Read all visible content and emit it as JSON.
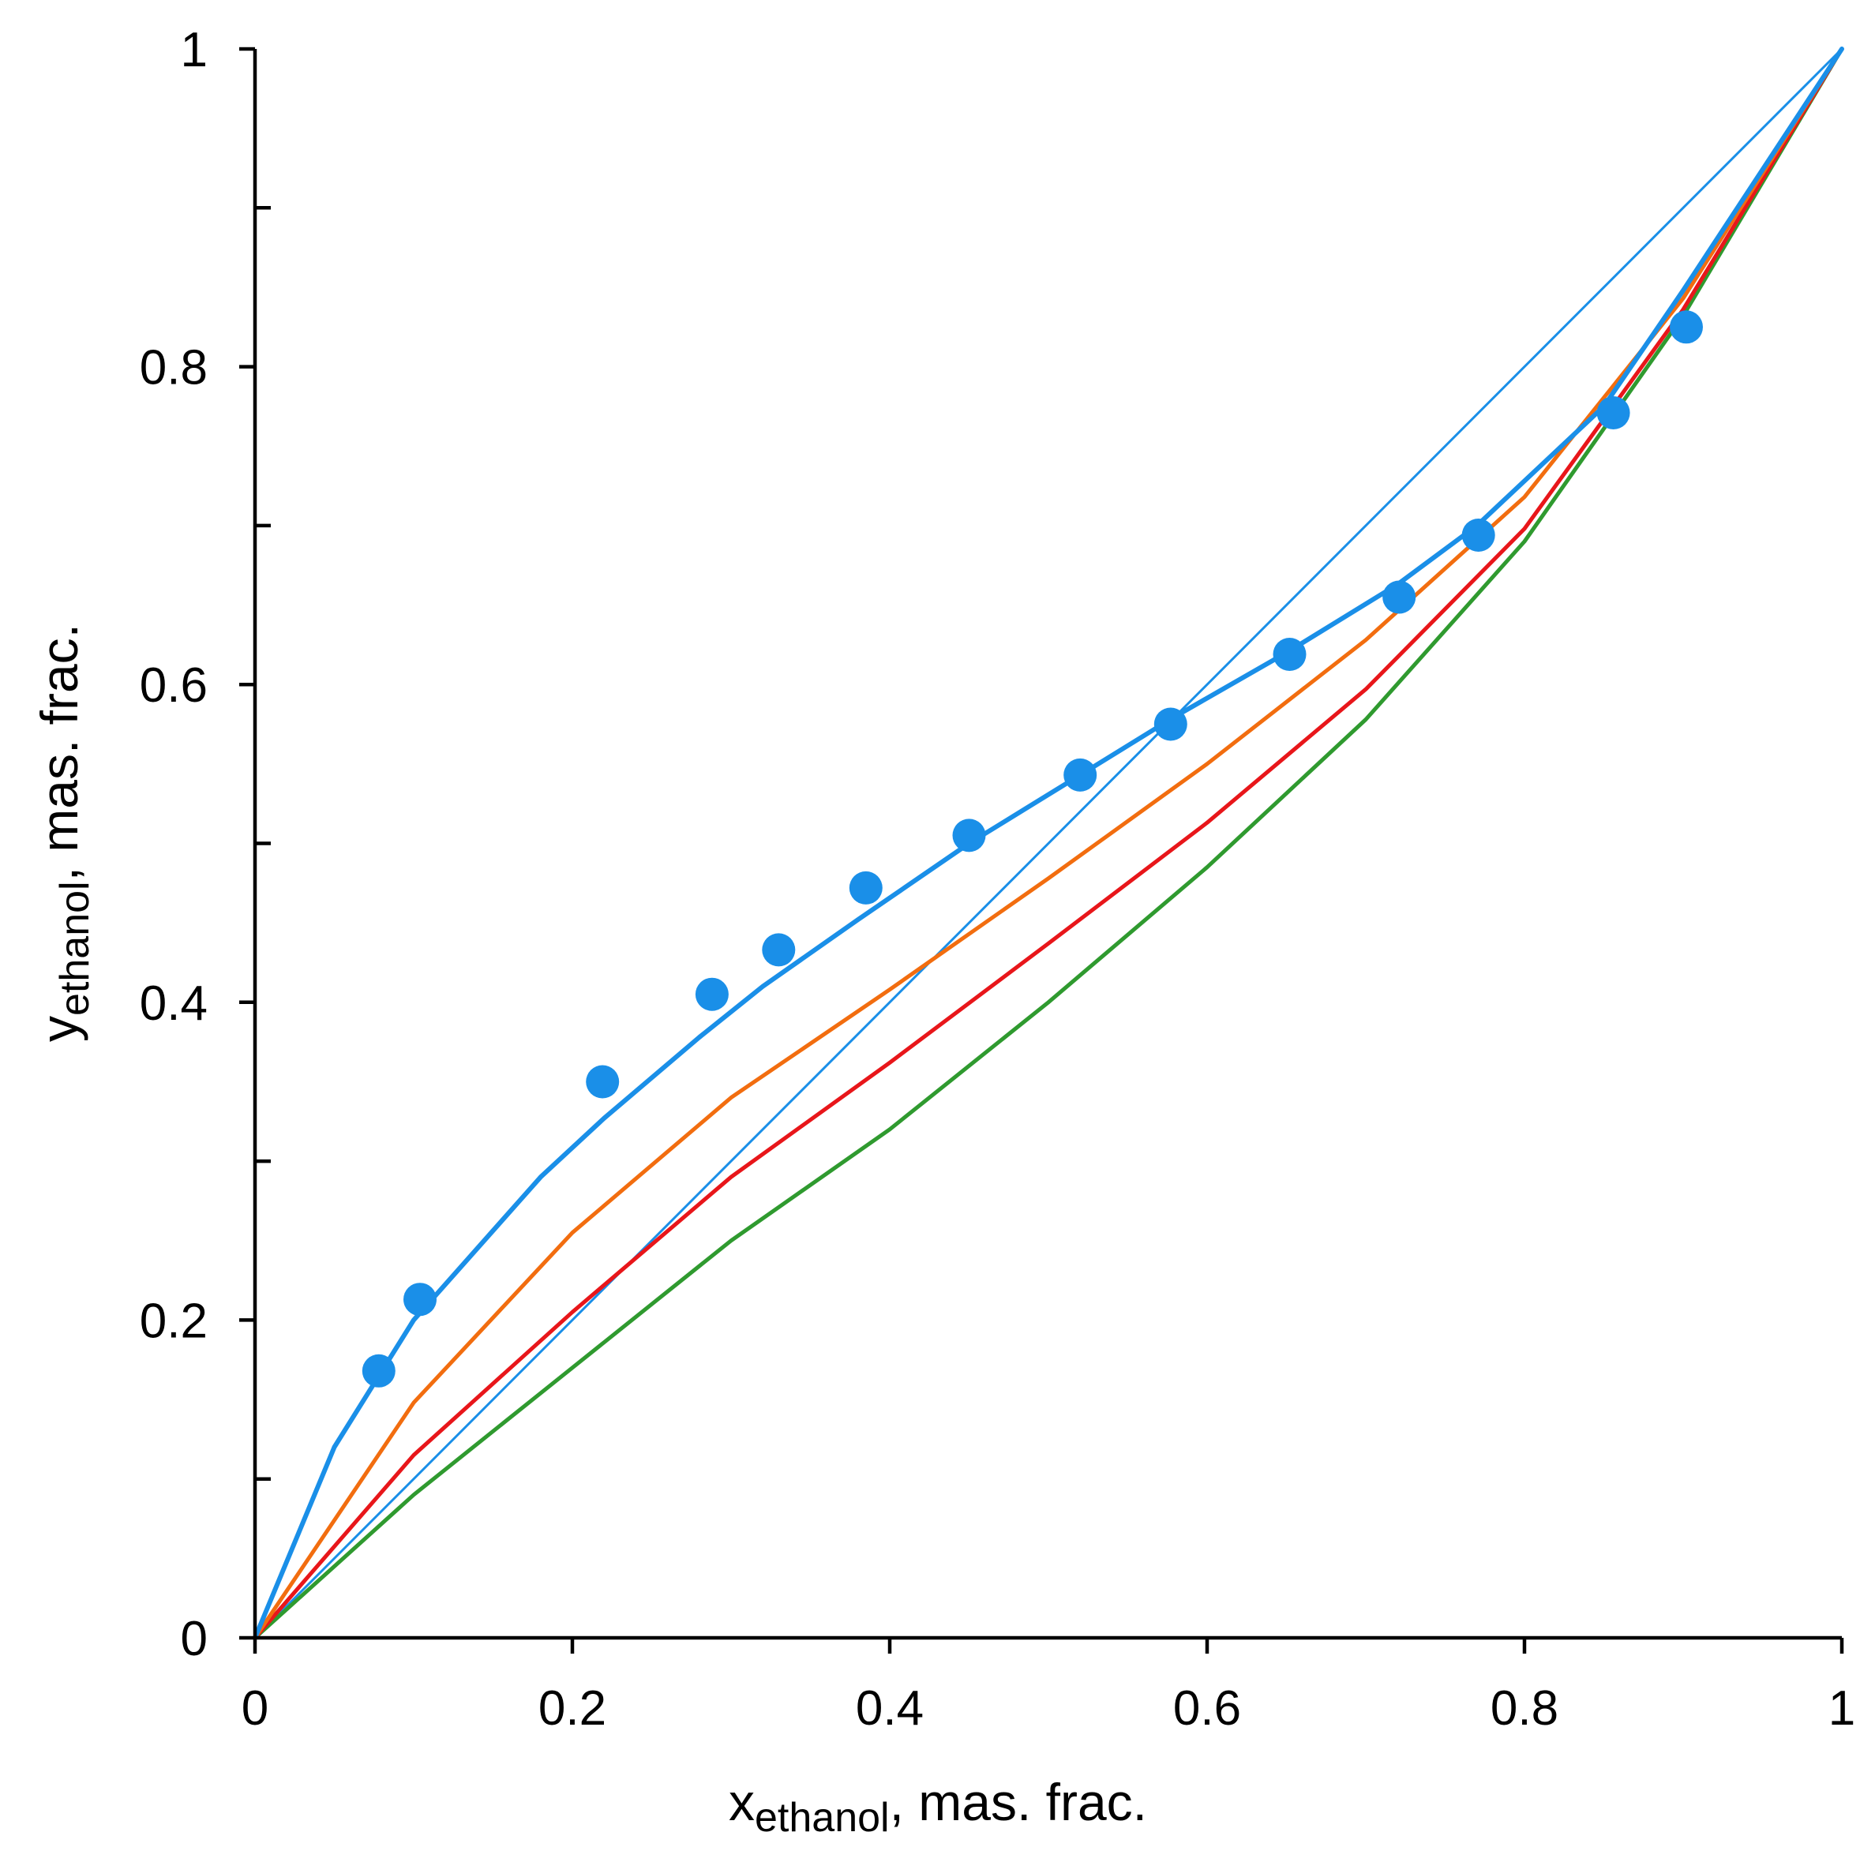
{
  "chart_data": {
    "type": "line",
    "title": "",
    "xlabel": {
      "main": "x",
      "sub": "ethanol",
      "suffix": ", mas. frac."
    },
    "ylabel": {
      "main": "y",
      "sub": "ethanol",
      "suffix": ", mas. frac."
    },
    "xlim": [
      0,
      1
    ],
    "ylim": [
      0,
      1
    ],
    "x_ticks": [
      0,
      0.2,
      0.4,
      0.6,
      0.8,
      1
    ],
    "x_tick_labels": [
      "0",
      "0.2",
      "0.4",
      "0.6",
      "0.8",
      "1"
    ],
    "y_major_ticks": [
      0,
      0.2,
      0.4,
      0.6,
      0.8,
      1
    ],
    "y_tick_labels": [
      "0",
      "0.2",
      "0.4",
      "0.6",
      "0.8",
      "1"
    ],
    "y_minor_ticks": [
      0.1,
      0.3,
      0.5,
      0.7,
      0.9
    ],
    "grid": false,
    "legend": "none",
    "series": [
      {
        "kind": "line",
        "color": "#1a8fe8",
        "style": "thin",
        "points": [
          [
            0,
            0
          ],
          [
            1,
            1
          ]
        ]
      },
      {
        "kind": "line",
        "color": "#2f9a2f",
        "points": [
          [
            0,
            0
          ],
          [
            0.1,
            0.09
          ],
          [
            0.2,
            0.17
          ],
          [
            0.3,
            0.25
          ],
          [
            0.4,
            0.32
          ],
          [
            0.5,
            0.4
          ],
          [
            0.6,
            0.485
          ],
          [
            0.7,
            0.578
          ],
          [
            0.8,
            0.69
          ],
          [
            0.9,
            0.832
          ],
          [
            1,
            1
          ]
        ]
      },
      {
        "kind": "line",
        "color": "#e8161a",
        "points": [
          [
            0,
            0
          ],
          [
            0.1,
            0.115
          ],
          [
            0.2,
            0.205
          ],
          [
            0.3,
            0.29
          ],
          [
            0.4,
            0.362
          ],
          [
            0.5,
            0.437
          ],
          [
            0.6,
            0.513
          ],
          [
            0.7,
            0.597
          ],
          [
            0.8,
            0.698
          ],
          [
            0.9,
            0.836
          ],
          [
            1,
            1
          ]
        ]
      },
      {
        "kind": "line",
        "color": "#f26d0f",
        "points": [
          [
            0,
            0
          ],
          [
            0.1,
            0.148
          ],
          [
            0.2,
            0.255
          ],
          [
            0.3,
            0.34
          ],
          [
            0.4,
            0.408
          ],
          [
            0.5,
            0.478
          ],
          [
            0.6,
            0.55
          ],
          [
            0.7,
            0.628
          ],
          [
            0.8,
            0.718
          ],
          [
            0.9,
            0.843
          ],
          [
            1,
            1
          ]
        ]
      },
      {
        "kind": "line",
        "color": "#1a8fe8",
        "style": "thick",
        "points": [
          [
            0,
            0
          ],
          [
            0.05,
            0.12
          ],
          [
            0.1,
            0.2
          ],
          [
            0.18,
            0.29
          ],
          [
            0.22,
            0.327
          ],
          [
            0.28,
            0.378
          ],
          [
            0.32,
            0.41
          ],
          [
            0.38,
            0.452
          ],
          [
            0.45,
            0.5
          ],
          [
            0.52,
            0.543
          ],
          [
            0.58,
            0.58
          ],
          [
            0.65,
            0.62
          ],
          [
            0.72,
            0.663
          ],
          [
            0.77,
            0.7
          ],
          [
            0.85,
            0.775
          ],
          [
            0.9,
            0.848
          ],
          [
            1,
            1
          ]
        ]
      },
      {
        "kind": "scatter",
        "color": "#1a8fe8",
        "points": [
          [
            0.078,
            0.168
          ],
          [
            0.104,
            0.213
          ],
          [
            0.219,
            0.35
          ],
          [
            0.288,
            0.405
          ],
          [
            0.33,
            0.433
          ],
          [
            0.385,
            0.472
          ],
          [
            0.45,
            0.505
          ],
          [
            0.52,
            0.543
          ],
          [
            0.577,
            0.575
          ],
          [
            0.652,
            0.619
          ],
          [
            0.721,
            0.655
          ],
          [
            0.771,
            0.694
          ],
          [
            0.856,
            0.771
          ],
          [
            0.902,
            0.825
          ]
        ]
      }
    ]
  }
}
